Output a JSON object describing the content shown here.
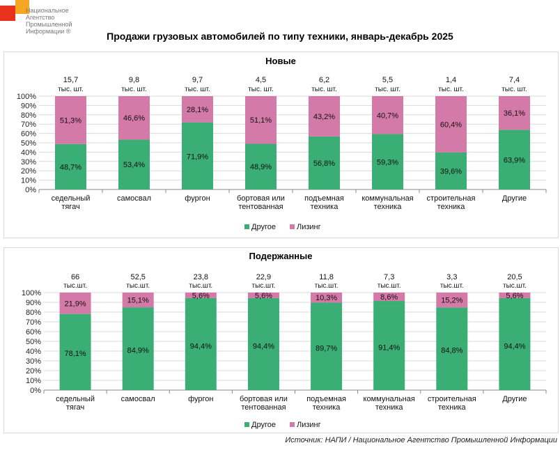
{
  "logo": {
    "abbr": "НАПИ",
    "name": "Национальное Агентство Промышленной Информации ®"
  },
  "title": "Продажи грузовых автомобилей по типу техники, январь-декабрь 2025",
  "source": "Источник: НАПИ / Национальное Агентство Промышленной Информации",
  "colors": {
    "other": "#3aae74",
    "leasing": "#d47aa8"
  },
  "chart_data": [
    {
      "type": "bar",
      "stacked": "percent",
      "title": "Новые",
      "categories": [
        [
          "седельный",
          "тягач"
        ],
        [
          "самосвал"
        ],
        [
          "фургон"
        ],
        [
          "бортовая или",
          "тентованная"
        ],
        [
          "подъемная",
          "техника"
        ],
        [
          "коммунальная",
          "техника"
        ],
        [
          "строительная",
          "техника"
        ],
        [
          "Другие"
        ]
      ],
      "totals": [
        "15,7",
        "9,8",
        "9,7",
        "4,5",
        "6,2",
        "5,5",
        "1,4",
        "7,4"
      ],
      "totals_unit": "тыс. шт.",
      "series": [
        {
          "name": "Другое",
          "values": [
            48.7,
            53.4,
            71.9,
            48.9,
            56.8,
            59.3,
            39.6,
            63.9
          ],
          "labels": [
            "48,7%",
            "53,4%",
            "71,9%",
            "48,9%",
            "56,8%",
            "59,3%",
            "39,6%",
            "63,9%"
          ]
        },
        {
          "name": "Лизинг",
          "values": [
            51.3,
            46.6,
            28.1,
            51.1,
            43.2,
            40.7,
            60.4,
            36.1
          ],
          "labels": [
            "51,3%",
            "46,6%",
            "28,1%",
            "51,1%",
            "43,2%",
            "40,7%",
            "60,4%",
            "36,1%"
          ]
        }
      ],
      "yticks": [
        "0%",
        "10%",
        "20%",
        "30%",
        "40%",
        "50%",
        "60%",
        "70%",
        "80%",
        "90%",
        "100%"
      ],
      "ylim": [
        0,
        100
      ],
      "grid": true,
      "legend": "bottom"
    },
    {
      "type": "bar",
      "stacked": "percent",
      "title": "Подержанные",
      "categories": [
        [
          "седельный",
          "тягач"
        ],
        [
          "самосвал"
        ],
        [
          "фургон"
        ],
        [
          "бортовая или",
          "тентованная"
        ],
        [
          "подъемная",
          "техника"
        ],
        [
          "коммунальная",
          "техника"
        ],
        [
          "строительная",
          "техника"
        ],
        [
          "Другие"
        ]
      ],
      "totals": [
        "66",
        "52,5",
        "23,8",
        "22,9",
        "11,8",
        "7,3",
        "3,3",
        "20,5"
      ],
      "totals_unit": "тыс.шт.",
      "series": [
        {
          "name": "Другое",
          "values": [
            78.1,
            84.9,
            94.4,
            94.4,
            89.7,
            91.4,
            84.8,
            94.4
          ],
          "labels": [
            "78,1%",
            "84,9%",
            "94,4%",
            "94,4%",
            "89,7%",
            "91,4%",
            "84,8%",
            "94,4%"
          ]
        },
        {
          "name": "Лизинг",
          "values": [
            21.9,
            15.1,
            5.6,
            5.6,
            10.3,
            8.6,
            15.2,
            5.6
          ],
          "labels": [
            "21,9%",
            "15,1%",
            "5,6%",
            "5,6%",
            "10,3%",
            "8,6%",
            "15,2%",
            "5,6%"
          ]
        }
      ],
      "yticks": [
        "0%",
        "10%",
        "20%",
        "30%",
        "40%",
        "50%",
        "60%",
        "70%",
        "80%",
        "90%",
        "100%"
      ],
      "ylim": [
        0,
        100
      ],
      "grid": true,
      "legend": "bottom"
    }
  ]
}
